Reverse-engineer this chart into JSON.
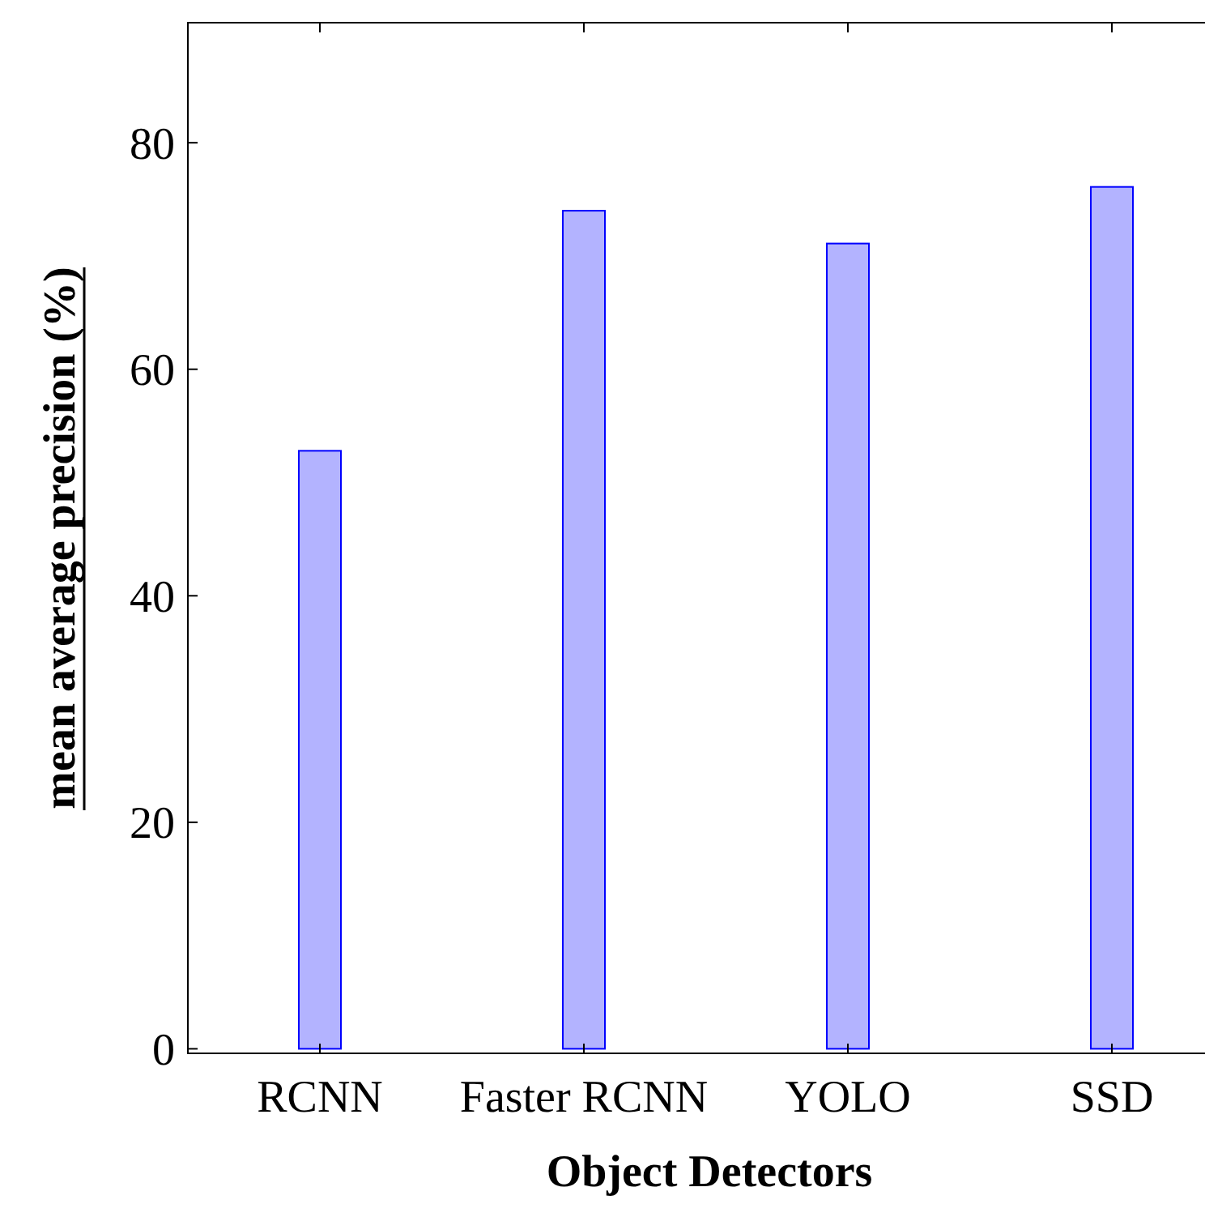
{
  "chart_data": {
    "type": "bar",
    "xlabel": "Object Detectors",
    "ylabel": "mean average precision (%)",
    "categories": [
      "RCNN",
      "Faster RCNN",
      "YOLO",
      "SSD"
    ],
    "values": [
      52.8,
      74.0,
      71.1,
      76.1
    ],
    "color": "#b3b3ff",
    "ylim": [
      -0.4,
      90.6
    ],
    "yticks": [
      0,
      20,
      40,
      60,
      80
    ],
    "grid": false
  }
}
